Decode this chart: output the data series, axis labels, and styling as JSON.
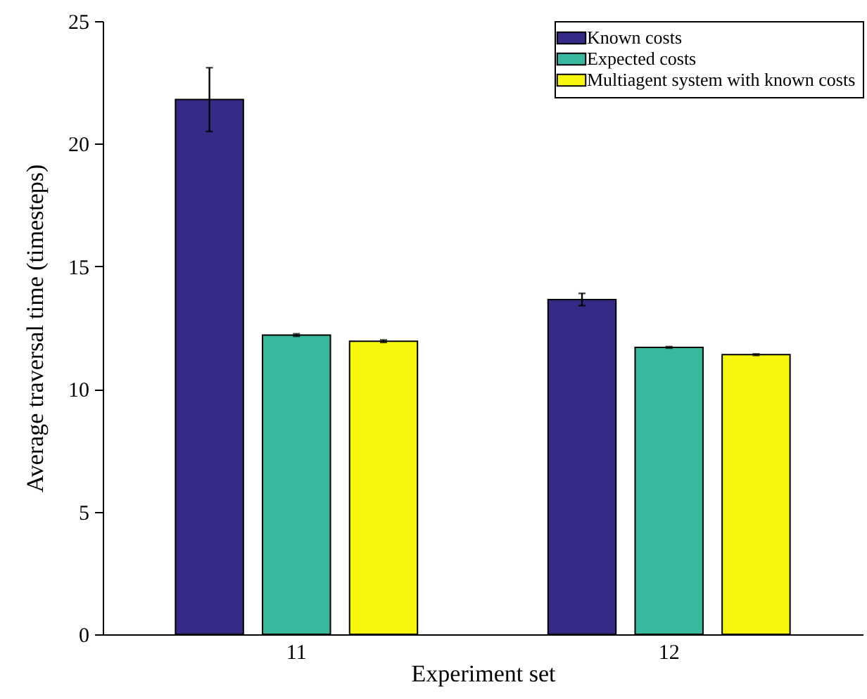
{
  "chart_data": {
    "type": "bar",
    "xlabel": "Experiment set",
    "ylabel": "Average traversal time (timesteps)",
    "categories": [
      "11",
      "12"
    ],
    "series": [
      {
        "name": "Known costs",
        "color": "#352a86",
        "values": [
          21.8,
          13.65
        ],
        "errors": [
          1.3,
          0.25
        ]
      },
      {
        "name": "Expected costs",
        "color": "#38b99e",
        "values": [
          12.2,
          11.7
        ],
        "errors": [
          0.05,
          0.03
        ]
      },
      {
        "name": "Multiagent system with known costs",
        "color": "#f7f60d",
        "values": [
          11.95,
          11.4
        ],
        "errors": [
          0.05,
          0.03
        ]
      }
    ],
    "ylim": [
      0,
      25
    ],
    "yticks": [
      0,
      5,
      10,
      15,
      20,
      25
    ],
    "legend": "top right"
  }
}
